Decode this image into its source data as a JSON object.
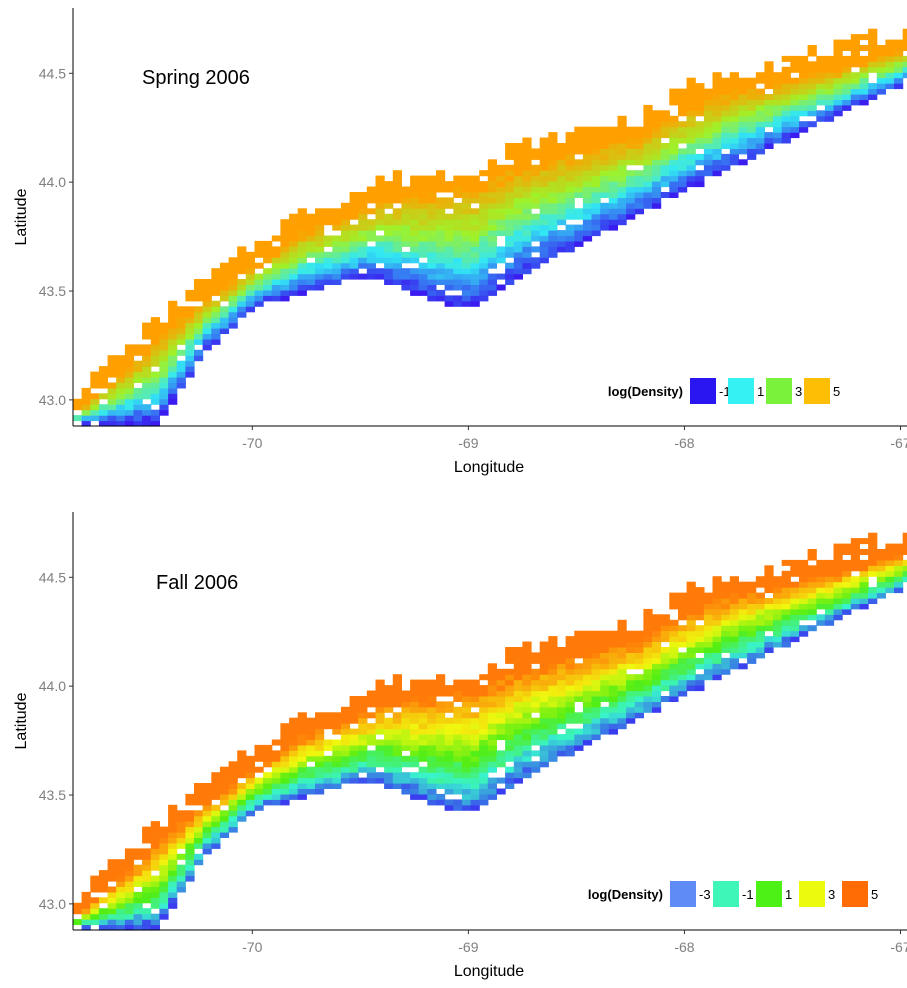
{
  "chart_data": [
    {
      "type": "heatmap",
      "title": "Spring 2006",
      "xlabel": "Longitude",
      "ylabel": "Latitude",
      "xlim": [
        -70.83,
        -66.97
      ],
      "ylim": [
        42.88,
        44.8
      ],
      "x_ticks": [
        -70,
        -69,
        -68,
        -67
      ],
      "y_ticks": [
        43.0,
        43.5,
        44.0,
        44.5
      ],
      "x_tick_labels": [
        "-70",
        "-69",
        "-68",
        "-67"
      ],
      "y_tick_labels": [
        "43.0",
        "43.5",
        "44.0",
        "44.5"
      ],
      "grid": false,
      "legend": {
        "title": "log(Density)",
        "placement": "bottom-right",
        "entries": [
          {
            "label": "-1",
            "color": "#2a16f0"
          },
          {
            "label": "1",
            "color": "#34f1f3"
          },
          {
            "label": "3",
            "color": "#7af13b"
          },
          {
            "label": "5",
            "color": "#ffbe06"
          }
        ]
      },
      "shelf_inner_edge": [
        [
          -70.83,
          42.93
        ],
        [
          -70.6,
          43.12
        ],
        [
          -70.3,
          43.4
        ],
        [
          -70.0,
          43.6
        ],
        [
          -69.8,
          43.75
        ],
        [
          -69.6,
          43.82
        ],
        [
          -69.4,
          43.9
        ],
        [
          -69.0,
          43.95
        ],
        [
          -68.8,
          44.05
        ],
        [
          -68.5,
          44.12
        ],
        [
          -68.2,
          44.2
        ],
        [
          -68.0,
          44.32
        ],
        [
          -67.8,
          44.4
        ],
        [
          -67.4,
          44.48
        ],
        [
          -66.97,
          44.6
        ]
      ],
      "shelf_outer_edge": [
        [
          -70.83,
          42.88
        ],
        [
          -70.45,
          42.88
        ],
        [
          -70.25,
          43.2
        ],
        [
          -70.0,
          43.42
        ],
        [
          -69.7,
          43.5
        ],
        [
          -69.45,
          43.55
        ],
        [
          -69.2,
          43.45
        ],
        [
          -69.0,
          43.4
        ],
        [
          -68.7,
          43.6
        ],
        [
          -68.4,
          43.75
        ],
        [
          -68.1,
          43.9
        ],
        [
          -67.8,
          44.05
        ],
        [
          -67.5,
          44.2
        ],
        [
          -67.2,
          44.35
        ],
        [
          -66.97,
          44.45
        ]
      ],
      "color_gradient": [
        {
          "t": 0.0,
          "value": 5,
          "color": "#ffa000"
        },
        {
          "t": 0.35,
          "value": 3,
          "color": "#9ef22a"
        },
        {
          "t": 0.65,
          "value": 1,
          "color": "#32e8f4"
        },
        {
          "t": 1.0,
          "value": -1,
          "color": "#3a1cf0"
        }
      ]
    },
    {
      "type": "heatmap",
      "title": "Fall 2006",
      "xlabel": "Longitude",
      "ylabel": "Latitude",
      "xlim": [
        -70.83,
        -66.97
      ],
      "ylim": [
        42.88,
        44.8
      ],
      "x_ticks": [
        -70,
        -69,
        -68,
        -67
      ],
      "y_ticks": [
        43.0,
        43.5,
        44.0,
        44.5
      ],
      "x_tick_labels": [
        "-70",
        "-69",
        "-68",
        "-67"
      ],
      "y_tick_labels": [
        "43.0",
        "43.5",
        "44.0",
        "44.5"
      ],
      "grid": false,
      "legend": {
        "title": "log(Density)",
        "placement": "bottom-right",
        "entries": [
          {
            "label": "-3",
            "color": "#5e8bf5"
          },
          {
            "label": "-1",
            "color": "#3ef6b8"
          },
          {
            "label": "1",
            "color": "#4ef115"
          },
          {
            "label": "3",
            "color": "#ecfb0d"
          },
          {
            "label": "5",
            "color": "#ff6c06"
          }
        ]
      },
      "shelf_inner_edge": [
        [
          -70.83,
          42.93
        ],
        [
          -70.6,
          43.12
        ],
        [
          -70.3,
          43.4
        ],
        [
          -70.0,
          43.6
        ],
        [
          -69.8,
          43.75
        ],
        [
          -69.6,
          43.82
        ],
        [
          -69.4,
          43.9
        ],
        [
          -69.0,
          43.95
        ],
        [
          -68.8,
          44.05
        ],
        [
          -68.5,
          44.12
        ],
        [
          -68.2,
          44.2
        ],
        [
          -68.0,
          44.32
        ],
        [
          -67.8,
          44.4
        ],
        [
          -67.4,
          44.48
        ],
        [
          -66.97,
          44.6
        ]
      ],
      "shelf_outer_edge": [
        [
          -70.83,
          42.88
        ],
        [
          -70.45,
          42.88
        ],
        [
          -70.25,
          43.2
        ],
        [
          -70.0,
          43.42
        ],
        [
          -69.7,
          43.5
        ],
        [
          -69.45,
          43.55
        ],
        [
          -69.2,
          43.45
        ],
        [
          -69.0,
          43.4
        ],
        [
          -68.7,
          43.6
        ],
        [
          -68.4,
          43.75
        ],
        [
          -68.1,
          43.9
        ],
        [
          -67.8,
          44.05
        ],
        [
          -67.5,
          44.2
        ],
        [
          -67.2,
          44.35
        ],
        [
          -66.97,
          44.45
        ]
      ],
      "color_gradient": [
        {
          "t": 0.0,
          "value": 5,
          "color": "#ff7a08"
        },
        {
          "t": 0.3,
          "value": 3,
          "color": "#f0f80e"
        },
        {
          "t": 0.55,
          "value": 1,
          "color": "#52ee14"
        },
        {
          "t": 0.78,
          "value": -1,
          "color": "#38f3cf"
        },
        {
          "t": 1.0,
          "value": -3,
          "color": "#3a3cf0"
        }
      ]
    }
  ]
}
